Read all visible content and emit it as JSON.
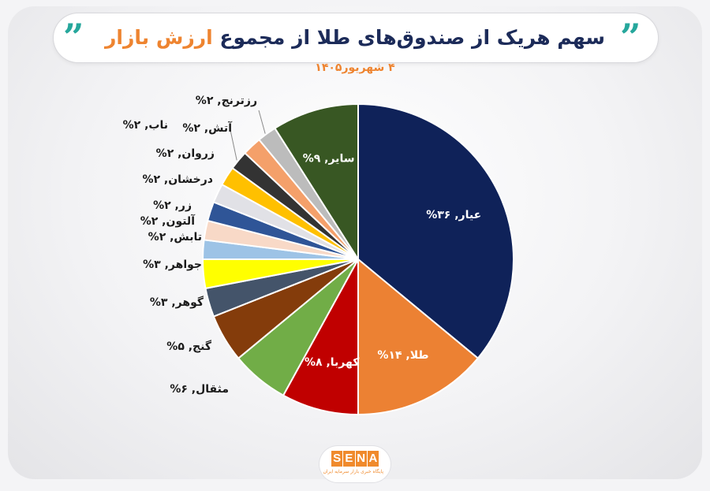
{
  "header": {
    "title_main": "سهم هریک از صندوق‌های طلا از مجموع",
    "title_accent": "ارزش بازار",
    "subtitle": "۴ شهریور۱۴۰۵",
    "quote_glyph": "”"
  },
  "logo": {
    "letters": [
      "S",
      "E",
      "N",
      "A"
    ],
    "tagline": "پایگاه خبری بازار سرمایه ایران",
    "color": "#f08a2c"
  },
  "chart_data": {
    "type": "pie",
    "title": "سهم هریک از صندوق‌های طلا از مجموع ارزش بازار",
    "unit": "%",
    "slices": [
      {
        "label": "عیار",
        "value": 36,
        "text": "عیار, ۳۶%",
        "color": "#0f2259",
        "label_inside": true
      },
      {
        "label": "طلا",
        "value": 14,
        "text": "طلا, ۱۴%",
        "color": "#ec8133",
        "label_inside": true
      },
      {
        "label": "کهربا",
        "value": 8,
        "text": "کهربا, ۸%",
        "color": "#c00000",
        "label_inside": true
      },
      {
        "label": "مثقال",
        "value": 6,
        "text": "مثقال, ۶%",
        "color": "#71ad47",
        "label_inside": false
      },
      {
        "label": "گنج",
        "value": 5,
        "text": "گنج, ۵%",
        "color": "#843c0b",
        "label_inside": false
      },
      {
        "label": "گوهر",
        "value": 3,
        "text": "گوهر, ۳%",
        "color": "#44546a",
        "label_inside": false
      },
      {
        "label": "جواهر",
        "value": 3,
        "text": "جواهر, ۳%",
        "color": "#ffff00",
        "label_inside": false
      },
      {
        "label": "تابش",
        "value": 2,
        "text": "تابش, ۲%",
        "color": "#9dc3e6",
        "label_inside": false
      },
      {
        "label": "آلتون",
        "value": 2,
        "text": "آلتون, ۲%",
        "color": "#f8d9c7",
        "label_inside": false
      },
      {
        "label": "زر",
        "value": 2,
        "text": "زر, ۲%",
        "color": "#2f5597",
        "label_inside": false
      },
      {
        "label": "درخشان",
        "value": 2,
        "text": "درخشان, ۲%",
        "color": "#e1e1e6",
        "label_inside": false
      },
      {
        "label": "زروان",
        "value": 2,
        "text": "زروان, ۲%",
        "color": "#ffc000",
        "label_inside": false
      },
      {
        "label": "ناب",
        "value": 2,
        "text": "ناب, ۲%",
        "color": "#333333",
        "label_inside": false
      },
      {
        "label": "آتش",
        "value": 2,
        "text": "آتش, ۲%",
        "color": "#f4a06a",
        "label_inside": false
      },
      {
        "label": "رز ترنج",
        "value": 2,
        "text": "رزترنج, ۲%",
        "color": "#bcbcbc",
        "label_inside": false
      },
      {
        "label": "سایر",
        "value": 9,
        "text": "سایر, ۹%",
        "color": "#385723",
        "label_inside": true
      }
    ],
    "legend": "none"
  }
}
